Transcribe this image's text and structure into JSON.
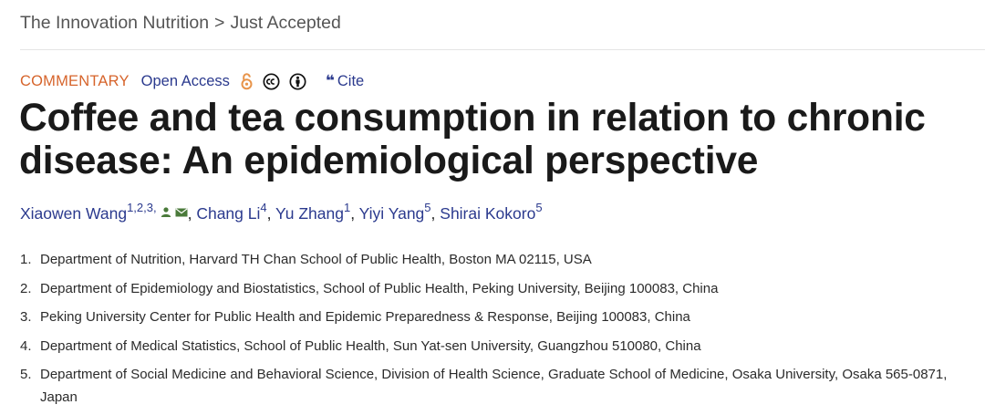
{
  "breadcrumb": {
    "journal": "The Innovation Nutrition",
    "separator": ">",
    "section": "Just Accepted"
  },
  "article": {
    "type": "COMMENTARY",
    "access": "Open Access",
    "cite_label": "Cite",
    "icons": [
      "open-access-lock-icon",
      "creative-commons-icon",
      "cc-by-attribution-icon",
      "quote-icon"
    ],
    "title": "Coffee and tea consumption in relation to chronic disease: An epidemiological perspective"
  },
  "authors": [
    {
      "name": "Xiaowen Wang",
      "affil": "1,2,3,",
      "corresponding": true
    },
    {
      "name": "Chang Li",
      "affil": "4"
    },
    {
      "name": "Yu Zhang",
      "affil": "1"
    },
    {
      "name": "Yiyi Yang",
      "affil": "5"
    },
    {
      "name": "Shirai Kokoro",
      "affil": "5"
    }
  ],
  "affiliations": [
    {
      "num": "1.",
      "text": "Department of Nutrition, Harvard TH Chan School of Public Health, Boston MA 02115, USA"
    },
    {
      "num": "2.",
      "text": "Department of Epidemiology and Biostatistics, School of Public Health, Peking University, Beijing 100083, China"
    },
    {
      "num": "3.",
      "text": "Peking University Center for Public Health and Epidemic Preparedness & Response, Beijing 100083, China"
    },
    {
      "num": "4.",
      "text": "Department of Medical Statistics, School of Public Health, Sun Yat-sen University, Guangzhou 510080, China"
    },
    {
      "num": "5.",
      "text": "Department of Social Medicine and Behavioral Science, Division of Health Science, Graduate School of Medicine, Osaka University, Osaka 565-0871, Japan"
    }
  ],
  "colors": {
    "article_type": "#d6642b",
    "link": "#2b3a8e",
    "open_access_icon": "#e8944a",
    "title": "#1a1a1a",
    "corresponding_icons": "#4a7a3a"
  }
}
